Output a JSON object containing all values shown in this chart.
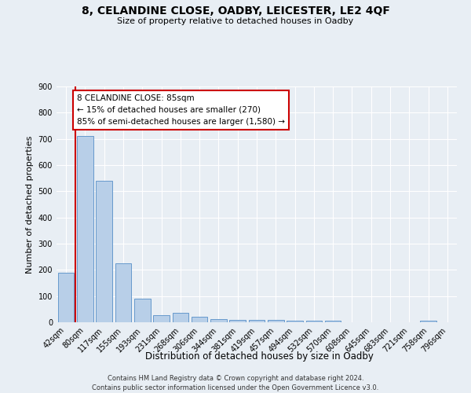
{
  "title": "8, CELANDINE CLOSE, OADBY, LEICESTER, LE2 4QF",
  "subtitle": "Size of property relative to detached houses in Oadby",
  "xlabel": "Distribution of detached houses by size in Oadby",
  "ylabel": "Number of detached properties",
  "categories": [
    "42sqm",
    "80sqm",
    "117sqm",
    "155sqm",
    "193sqm",
    "231sqm",
    "268sqm",
    "306sqm",
    "344sqm",
    "381sqm",
    "419sqm",
    "457sqm",
    "494sqm",
    "532sqm",
    "570sqm",
    "608sqm",
    "645sqm",
    "683sqm",
    "721sqm",
    "758sqm",
    "796sqm"
  ],
  "values": [
    190,
    710,
    540,
    225,
    90,
    27,
    35,
    22,
    13,
    10,
    10,
    10,
    6,
    6,
    7,
    0,
    0,
    0,
    0,
    7,
    0
  ],
  "bar_color": "#b8cfe8",
  "bar_edge_color": "#6699cc",
  "red_line_color": "#cc0000",
  "annotation_text": "8 CELANDINE CLOSE: 85sqm\n← 15% of detached houses are smaller (270)\n85% of semi-detached houses are larger (1,580) →",
  "annotation_box_color": "#ffffff",
  "annotation_box_edge": "#cc0000",
  "ylim": [
    0,
    900
  ],
  "yticks": [
    0,
    100,
    200,
    300,
    400,
    500,
    600,
    700,
    800,
    900
  ],
  "footer_line1": "Contains HM Land Registry data © Crown copyright and database right 2024.",
  "footer_line2": "Contains public sector information licensed under the Open Government Licence v3.0.",
  "background_color": "#e8eef4",
  "plot_bg_color": "#e8eef4",
  "grid_color": "#ffffff",
  "title_fontsize": 10,
  "subtitle_fontsize": 8,
  "ylabel_fontsize": 8,
  "xlabel_fontsize": 8.5,
  "tick_fontsize": 7,
  "footer_fontsize": 6,
  "annot_fontsize": 7.5
}
